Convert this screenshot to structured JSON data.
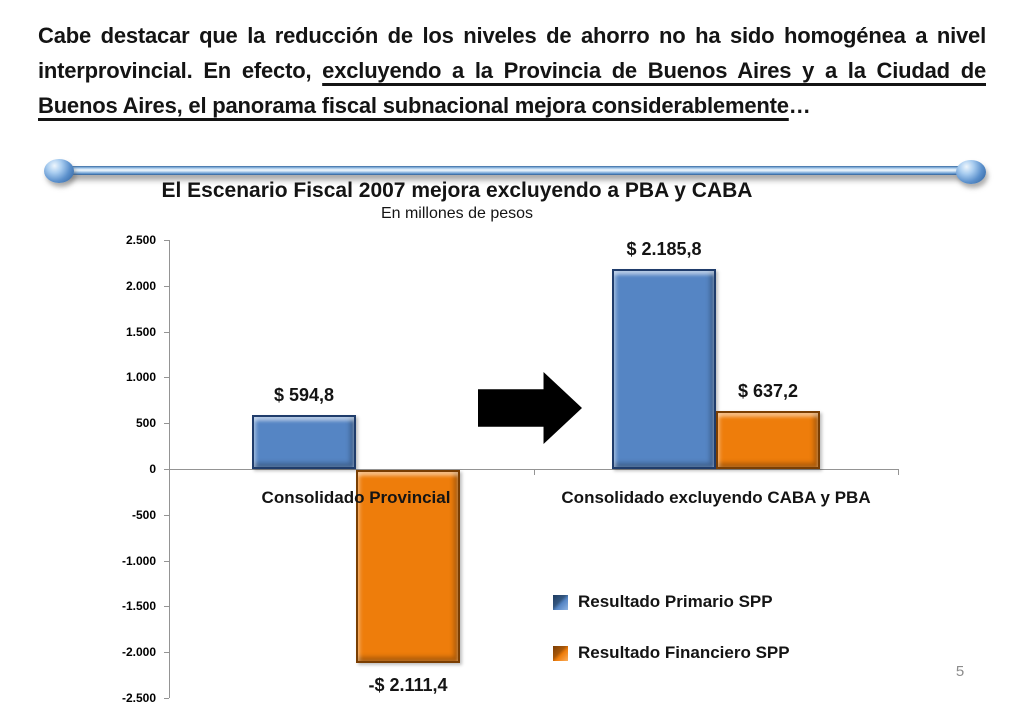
{
  "slide": {
    "paragraph": {
      "normal": "Cabe destacar que la reducción de los niveles de ahorro no ha sido homogénea a nivel interprovincial. En efecto, ",
      "underlined": "excluyendo a la Provincia de Buenos Aires y a la Ciudad de Buenos Aires, el panorama fiscal subnacional mejora considerablemente",
      "trailing": "…"
    },
    "page_number": "5",
    "divider_color": "#5B8DC8"
  },
  "chart_data": {
    "type": "bar",
    "title": "El Escenario Fiscal 2007 mejora excluyendo a PBA y CABA",
    "subtitle": "En millones de pesos",
    "categories": [
      "Consolidado Provincial",
      "Consolidado excluyendo CABA y PBA"
    ],
    "series": [
      {
        "name": "Resultado Primario SPP",
        "color": "#5585C4",
        "values": [
          594.8,
          2185.8
        ],
        "labels": [
          "$ 594,8",
          "$ 2.185,8"
        ]
      },
      {
        "name": "Resultado Financiero SPP",
        "color": "#EE7D0B",
        "values": [
          -2111.4,
          637.2
        ],
        "labels": [
          "-$ 2.111,4",
          "$ 637,2"
        ]
      }
    ],
    "ylim": [
      -2500,
      2500
    ],
    "ytick_step": 500,
    "ytick_labels": [
      "2.500",
      "2.000",
      "1.500",
      "1.000",
      "500",
      "0",
      "-500",
      "-1.000",
      "-1.500",
      "-2.000",
      "-2.500"
    ],
    "grid": false,
    "legend_position": "bottom-right",
    "annotation": "black right arrow between groups"
  }
}
